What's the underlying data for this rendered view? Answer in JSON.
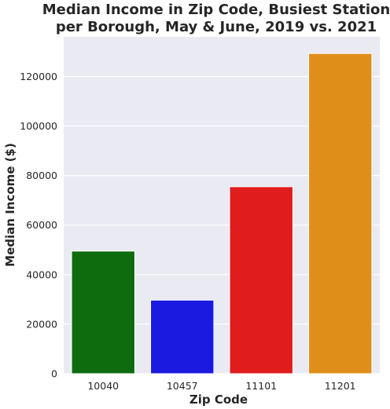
{
  "chart_data": {
    "type": "bar",
    "title_lines": [
      "Median Income in Zip Code, Busiest Station",
      "per Borough, May & June, 2019 vs. 2021"
    ],
    "xlabel": "Zip Code",
    "ylabel": "Median Income ($)",
    "categories": [
      "10040",
      "10457",
      "11101",
      "11201"
    ],
    "values": [
      49500,
      29700,
      75500,
      129300
    ],
    "colors": [
      "#0e6b0e",
      "#1a1ae0",
      "#e01c1c",
      "#e08e1a"
    ],
    "ylim": [
      0,
      136000
    ],
    "yticks": [
      0,
      20000,
      40000,
      60000,
      80000,
      100000,
      120000
    ],
    "ytick_labels": [
      "0",
      "20000",
      "40000",
      "60000",
      "80000",
      "100000",
      "120000"
    ],
    "grid": true,
    "plot_background": "#eaeaf2"
  }
}
